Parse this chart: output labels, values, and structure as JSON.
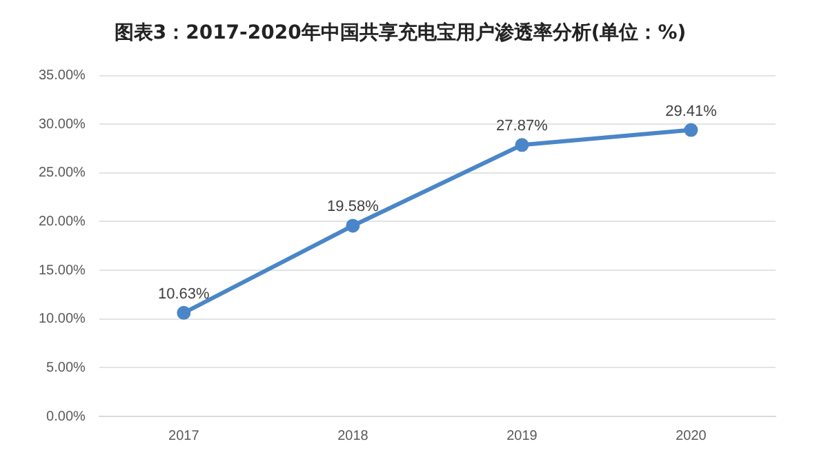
{
  "chart_data": {
    "type": "line",
    "title": "图表3：2017-2020年中国共享充电宝用户渗透率分析(单位：%)",
    "categories": [
      "2017",
      "2018",
      "2019",
      "2020"
    ],
    "series": [
      {
        "color": "#4a86c8",
        "values": [
          10.63,
          19.58,
          27.87,
          29.41
        ],
        "value_labels": [
          "10.63%",
          "19.58%",
          "27.87%",
          "29.41%"
        ]
      }
    ],
    "ylim": [
      0,
      35
    ],
    "yticks": [
      {
        "value": 0,
        "label": "0.00%"
      },
      {
        "value": 5,
        "label": "5.00%"
      },
      {
        "value": 10,
        "label": "10.00%"
      },
      {
        "value": 15,
        "label": "15.00%"
      },
      {
        "value": 20,
        "label": "20.00%"
      },
      {
        "value": 25,
        "label": "25.00%"
      },
      {
        "value": 30,
        "label": "30.00%"
      },
      {
        "value": 35,
        "label": "35.00%"
      }
    ],
    "grid": "y",
    "legend": false,
    "marker": "circle",
    "line_style": "solid"
  }
}
